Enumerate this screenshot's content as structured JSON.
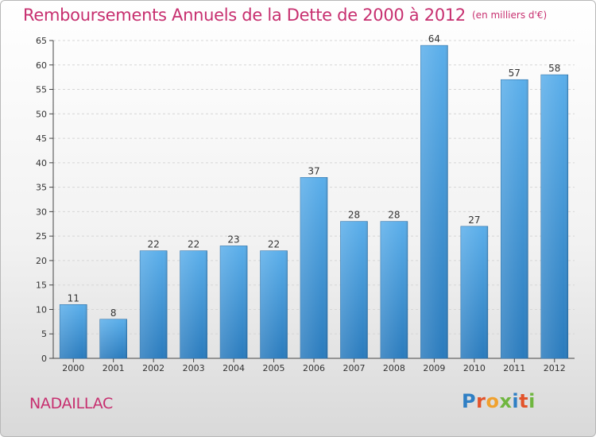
{
  "chart_data": {
    "type": "bar",
    "title": "Remboursements Annuels de la Dette de 2000 à 2012",
    "subtitle": "(en milliers d'€)",
    "categories": [
      "2000",
      "2001",
      "2002",
      "2003",
      "2004",
      "2005",
      "2006",
      "2007",
      "2008",
      "2009",
      "2010",
      "2011",
      "2012"
    ],
    "values": [
      11,
      8,
      22,
      22,
      23,
      22,
      37,
      28,
      28,
      64,
      27,
      57,
      58
    ],
    "xlabel": "",
    "ylabel": "",
    "ylim": [
      0,
      65
    ],
    "yticks": [
      0,
      5,
      10,
      15,
      20,
      25,
      30,
      35,
      40,
      45,
      50,
      55,
      60,
      65
    ],
    "grid": false,
    "bar_color": "#3f94d6",
    "title_color": "#c72f6f"
  },
  "footer": {
    "commune": "NADAILLAC",
    "logo_letters": [
      {
        "ch": "P",
        "color": "#2f7fc4"
      },
      {
        "ch": "r",
        "color": "#e2532a"
      },
      {
        "ch": "o",
        "color": "#f0a12e"
      },
      {
        "ch": "x",
        "color": "#6fb63f"
      },
      {
        "ch": "i",
        "color": "#2f7fc4"
      },
      {
        "ch": "t",
        "color": "#e2532a"
      },
      {
        "ch": "i",
        "color": "#6fb63f"
      }
    ]
  }
}
